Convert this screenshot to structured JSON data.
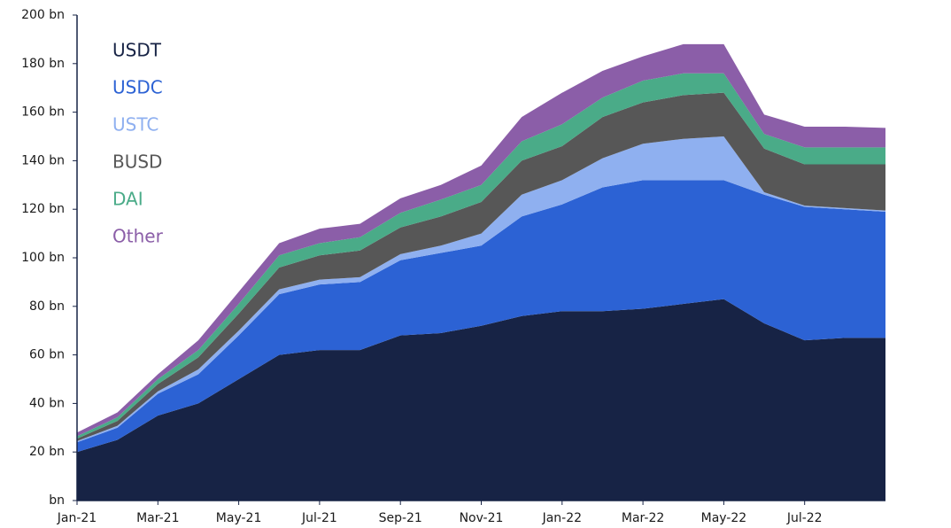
{
  "chart_data": {
    "type": "stacked_area",
    "categories": [
      "Jan-21",
      null,
      "Mar-21",
      null,
      "May-21",
      null,
      "Jul-21",
      null,
      "Sep-21",
      null,
      "Nov-21",
      null,
      "Jan-22",
      null,
      "Mar-22",
      null,
      "May-22",
      null,
      "Jul-22",
      null,
      null
    ],
    "series": [
      {
        "name": "USDT",
        "color": "#172345",
        "values": [
          20,
          25,
          35,
          40,
          50,
          60,
          62,
          62,
          68,
          69,
          72,
          76,
          78,
          78,
          79,
          81,
          83,
          73,
          66,
          67,
          67
        ]
      },
      {
        "name": "USDC",
        "color": "#2c62d4",
        "values": [
          4,
          5,
          9,
          12,
          18,
          25,
          27,
          28,
          31,
          33,
          33,
          41,
          44,
          51,
          53,
          51,
          49,
          53,
          55,
          53,
          52
        ]
      },
      {
        "name": "USTC",
        "color": "#8fb0f0",
        "values": [
          0.5,
          0.8,
          1,
          2,
          2,
          2,
          2,
          2,
          2.5,
          3,
          5,
          9,
          10,
          12,
          15,
          17,
          18,
          1,
          0.5,
          0.5,
          0.5
        ]
      },
      {
        "name": "BUSD",
        "color": "#575757",
        "values": [
          1,
          2,
          3,
          5,
          7,
          9,
          10,
          11,
          11,
          12,
          13,
          14,
          14,
          17,
          17,
          18,
          18,
          18,
          17,
          18,
          19
        ]
      },
      {
        "name": "DAI",
        "color": "#4aab88",
        "values": [
          1,
          1.5,
          2,
          3,
          4,
          5,
          5,
          5.5,
          6,
          7,
          7,
          8,
          9,
          8,
          9,
          9,
          8,
          6,
          7,
          7,
          7
        ]
      },
      {
        "name": "Other",
        "color": "#8b5ea8",
        "values": [
          1.5,
          2,
          2,
          4,
          5,
          5,
          6,
          5.5,
          6,
          6,
          8,
          10,
          13,
          11,
          10,
          12,
          12,
          8,
          8.5,
          8.5,
          8
        ]
      }
    ],
    "ylim": [
      0,
      200
    ],
    "yticks": [
      {
        "value": 0,
        "label": "bn"
      },
      {
        "value": 20,
        "label": "20 bn"
      },
      {
        "value": 40,
        "label": "40 bn"
      },
      {
        "value": 60,
        "label": "60 bn"
      },
      {
        "value": 80,
        "label": "80 bn"
      },
      {
        "value": 100,
        "label": "100 bn"
      },
      {
        "value": 120,
        "label": "120 bn"
      },
      {
        "value": 140,
        "label": "140 bn"
      },
      {
        "value": 160,
        "label": "160 bn"
      },
      {
        "value": 180,
        "label": "180 bn"
      },
      {
        "value": 200,
        "label": "200 bn"
      }
    ]
  }
}
